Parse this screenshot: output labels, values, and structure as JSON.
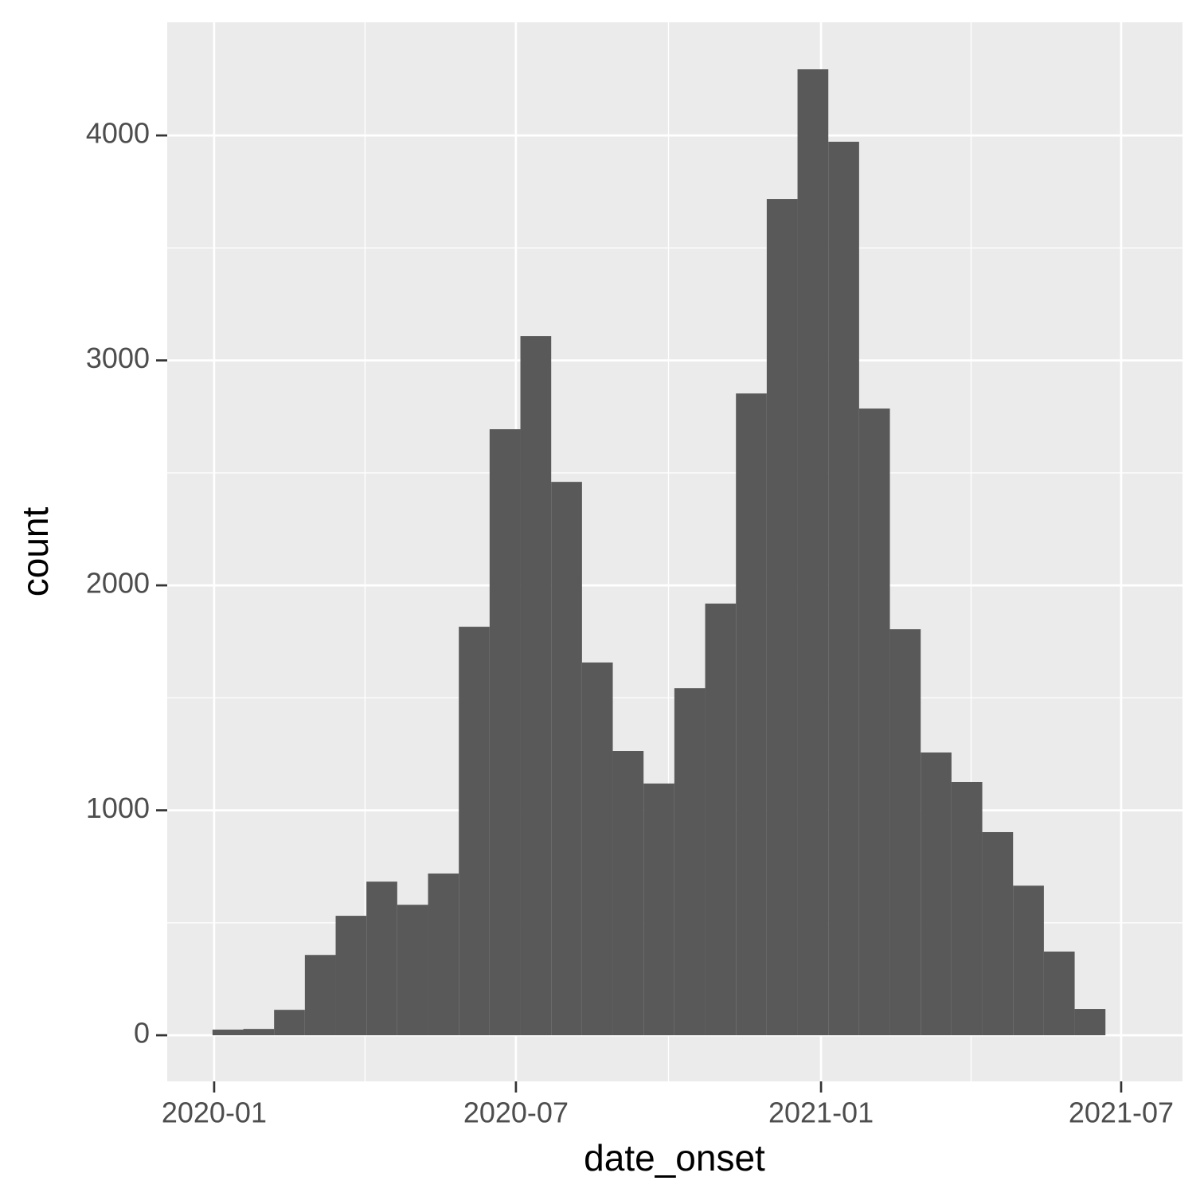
{
  "chart_data": {
    "type": "histogram",
    "x_label": "date_onset",
    "y_label": "count",
    "bins": [
      18261,
      18279.57,
      18298.14,
      18316.71,
      18335.28,
      18353.85,
      18372.42,
      18390.99,
      18409.56,
      18428.13,
      18446.7,
      18465.27,
      18483.84,
      18502.41,
      18520.98,
      18539.55,
      18558.12,
      18576.69,
      18595.26,
      18613.83,
      18632.4,
      18650.97,
      18669.54,
      18688.11,
      18706.68,
      18725.25,
      18743.82,
      18762.39,
      18780.96,
      18799.53
    ],
    "values": [
      25,
      28,
      113,
      357,
      531,
      683,
      580,
      719,
      1816,
      2694,
      3108,
      2460,
      1657,
      1264,
      1119,
      1543,
      1919,
      2853,
      3717,
      4294,
      3972,
      2786,
      1805,
      1257,
      1126,
      903,
      665,
      372,
      117
    ],
    "color": "#595959",
    "xlim": [
      18233.7,
      18846
    ],
    "xticks": [
      {
        "value": 18262,
        "label": "2020-01"
      },
      {
        "value": 18444,
        "label": "2020-07"
      },
      {
        "value": 18628,
        "label": "2021-01"
      },
      {
        "value": 18809,
        "label": "2021-07"
      }
    ],
    "ylim": [
      -205,
      4503
    ],
    "yticks": [
      0,
      1000,
      2000,
      3000,
      4000
    ],
    "grid": true
  }
}
